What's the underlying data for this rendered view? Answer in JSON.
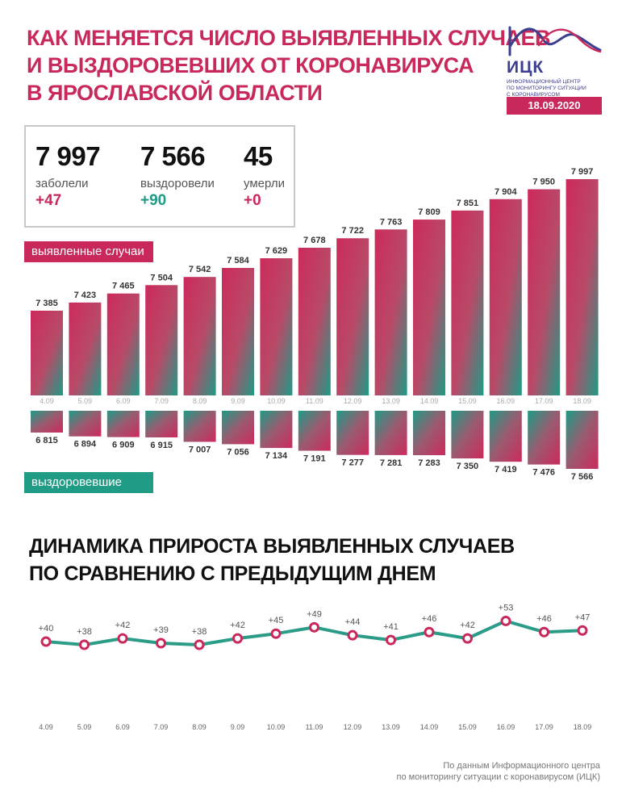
{
  "header": {
    "title_lines": [
      "КАК МЕНЯЕТСЯ ЧИСЛО ВЫЯВЛЕННЫХ СЛУЧАЕВ",
      "И ВЫЗДОРОВЕВШИХ ОТ КОРОНАВИРУСА",
      "В ЯРОСЛАВСКОЙ ОБЛАСТИ"
    ]
  },
  "logo": {
    "name": "ИЦК",
    "subtitle_lines": [
      "ИНФОРМАЦИОННЫЙ ЦЕНТР",
      "ПО МОНИТОРИНГУ СИТУАЦИИ",
      "С КОРОНАВИРУСОМ"
    ],
    "date": "18.09.2020"
  },
  "summary": {
    "sick": {
      "value": "7 997",
      "label": "заболели",
      "delta": "+47"
    },
    "recovered": {
      "value": "7 566",
      "label": "выздоровели",
      "delta": "+90"
    },
    "died": {
      "value": "45",
      "label": "умерли",
      "delta": "+0"
    }
  },
  "colors": {
    "accent": "#c8285a",
    "green": "#1f9b86",
    "line": "#2a9c88"
  },
  "labels": {
    "detected": "выявленные случаи",
    "recovered": "выздоровевшие"
  },
  "chart_data": [
    {
      "type": "bar",
      "categories": [
        "4.09",
        "5.09",
        "6.09",
        "7.09",
        "8.09",
        "9.09",
        "10.09",
        "11.09",
        "12.09",
        "13.09",
        "14.09",
        "15.09",
        "16.09",
        "17.09",
        "18.09"
      ],
      "series": [
        {
          "name": "выявленные случаи",
          "values": [
            7385,
            7423,
            7465,
            7504,
            7542,
            7584,
            7629,
            7678,
            7722,
            7763,
            7809,
            7851,
            7904,
            7950,
            7997
          ],
          "labels": [
            "7 385",
            "7 423",
            "7 465",
            "7 504",
            "7 542",
            "7 584",
            "7 629",
            "7 678",
            "7 722",
            "7 763",
            "7 809",
            "7 851",
            "7 904",
            "7 950",
            "7 997"
          ]
        },
        {
          "name": "выздоровевшие",
          "values": [
            6815,
            6894,
            6909,
            6915,
            7007,
            7056,
            7134,
            7191,
            7277,
            7281,
            7283,
            7350,
            7419,
            7476,
            7566
          ],
          "labels": [
            "6 815",
            "6 894",
            "6 909",
            "6 915",
            "7 007",
            "7 056",
            "7 134",
            "7 191",
            "7 277",
            "7 281",
            "7 283",
            "7 350",
            "7 419",
            "7 476",
            "7 566"
          ]
        }
      ]
    },
    {
      "type": "line",
      "title_lines": [
        "ДИНАМИКА ПРИРОСТА ВЫЯВЛЕННЫХ СЛУЧАЕВ",
        "ПО СРАВНЕНИЮ С ПРЕДЫДУЩИМ ДНЕМ"
      ],
      "categories": [
        "4.09",
        "5.09",
        "6.09",
        "7.09",
        "8.09",
        "9.09",
        "10.09",
        "11.09",
        "12.09",
        "13.09",
        "14.09",
        "15.09",
        "16.09",
        "17.09",
        "18.09"
      ],
      "values": [
        40,
        38,
        42,
        39,
        38,
        42,
        45,
        49,
        44,
        41,
        46,
        42,
        53,
        46,
        47
      ],
      "labels": [
        "+40",
        "+38",
        "+42",
        "+39",
        "+38",
        "+42",
        "+45",
        "+49",
        "+44",
        "+41",
        "+46",
        "+42",
        "+53",
        "+46",
        "+47"
      ]
    }
  ],
  "footer": {
    "lines": [
      "По данным Информационного центра",
      "по мониторингу ситуации с коронавирусом (ИЦК)"
    ]
  }
}
